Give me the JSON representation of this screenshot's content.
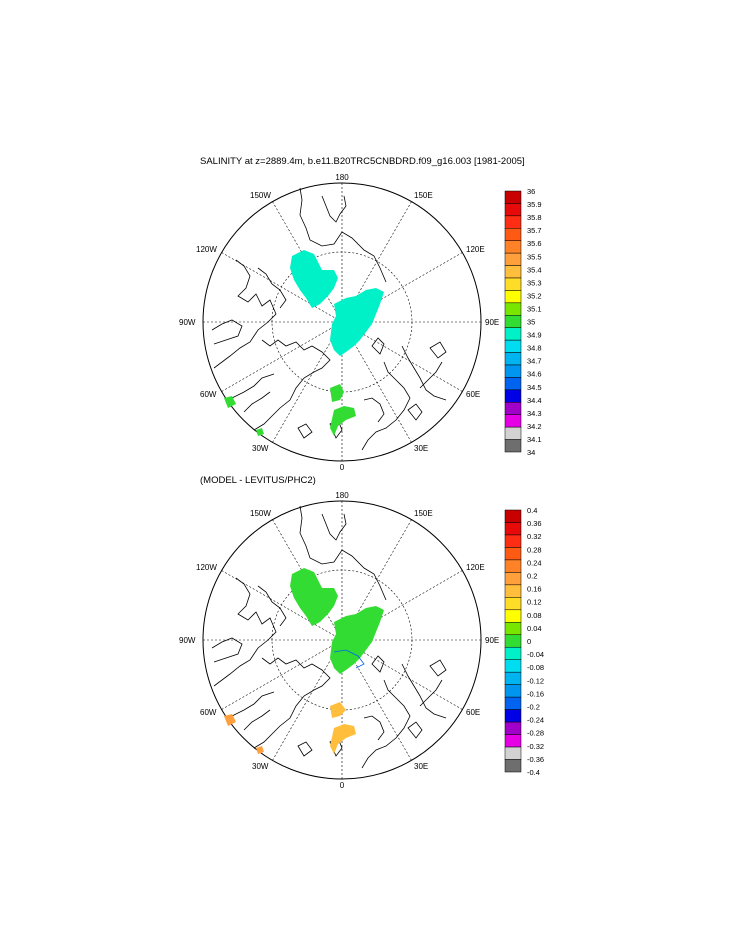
{
  "panels": [
    {
      "title": "SALINITY at z=2889.4m, b.e11.B20TRC5CNBDRD.f09_g16.003 [1981-2005]",
      "lon_labels": {
        "deg180": "180",
        "deg150e": "150E",
        "deg120e": "120E",
        "deg90e": "90E",
        "deg60e": "60E",
        "deg30e": "30E",
        "deg0": "0",
        "deg30w": "30W",
        "deg60w": "60W",
        "deg90w": "90W",
        "deg120w": "120W",
        "deg150w": "150W"
      },
      "legend": {
        "labels": [
          "36",
          "35.9",
          "35.8",
          "35.7",
          "35.6",
          "35.5",
          "35.4",
          "35.3",
          "35.2",
          "35.1",
          "35",
          "34.9",
          "34.8",
          "34.7",
          "34.6",
          "34.5",
          "34.4",
          "34.3",
          "34.2",
          "34.1",
          "34"
        ],
        "colors": [
          "#c80000",
          "#e60a0a",
          "#ff2d14",
          "#ff5a14",
          "#ff8228",
          "#ffa03c",
          "#ffbe3c",
          "#ffdc28",
          "#ffff00",
          "#78e600",
          "#32dc32",
          "#00f0c8",
          "#00dcf0",
          "#00b4f0",
          "#0096f0",
          "#0064f0",
          "#0000e6",
          "#a000c8",
          "#e600e6",
          "#d2d2d2",
          "#6e6e6e"
        ]
      },
      "fill_color": "#00f0c8",
      "fill_color2": "#32dc32"
    },
    {
      "title": "(MODEL - LEVITUS/PHC2)",
      "lon_labels": {
        "deg180": "180",
        "deg150e": "150E",
        "deg120e": "120E",
        "deg90e": "90E",
        "deg60e": "60E",
        "deg30e": "30E",
        "deg0": "0",
        "deg30w": "30W",
        "deg60w": "60W",
        "deg90w": "90W",
        "deg120w": "120W",
        "deg150w": "150W"
      },
      "legend": {
        "labels": [
          "0.4",
          "0.36",
          "0.32",
          "0.28",
          "0.24",
          "0.2",
          "0.16",
          "0.12",
          "0.08",
          "0.04",
          "0",
          "-0.04",
          "-0.08",
          "-0.12",
          "-0.16",
          "-0.2",
          "-0.24",
          "-0.28",
          "-0.32",
          "-0.36",
          "-0.4"
        ],
        "colors": [
          "#c80000",
          "#e60a0a",
          "#ff2d14",
          "#ff5a14",
          "#ff8228",
          "#ffa03c",
          "#ffbe3c",
          "#ffdc28",
          "#ffff00",
          "#78e600",
          "#32dc32",
          "#00f0c8",
          "#00dcf0",
          "#00b4f0",
          "#0096f0",
          "#0064f0",
          "#0000e6",
          "#a000c8",
          "#e600e6",
          "#d2d2d2",
          "#6e6e6e"
        ]
      },
      "fill_color": "#32dc32",
      "fill_color2": "#ffbe3c"
    }
  ]
}
